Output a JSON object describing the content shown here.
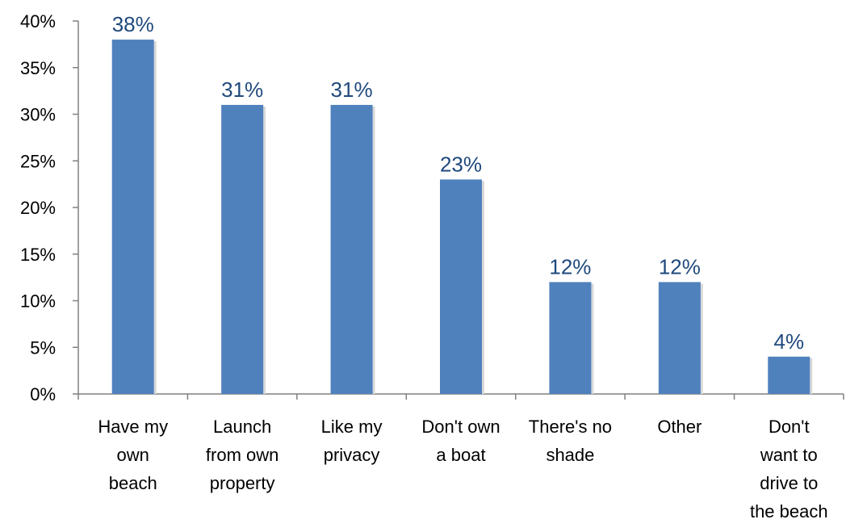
{
  "chart_data": {
    "type": "bar",
    "categories": [
      [
        "Have my",
        "own",
        "beach"
      ],
      [
        "Launch",
        "from own",
        "property"
      ],
      [
        "Like my",
        "privacy"
      ],
      [
        "Don't own",
        "a boat"
      ],
      [
        "There's no",
        "shade"
      ],
      [
        "Other"
      ],
      [
        "Don't",
        "want to",
        "drive to",
        "the beach"
      ]
    ],
    "values": [
      38,
      31,
      31,
      23,
      12,
      12,
      4
    ],
    "data_labels": [
      "38%",
      "31%",
      "31%",
      "23%",
      "12%",
      "12%",
      "4%"
    ],
    "title": "",
    "xlabel": "",
    "ylabel": "",
    "ylim": [
      0,
      40
    ],
    "yticks": [
      0,
      5,
      10,
      15,
      20,
      25,
      30,
      35,
      40
    ],
    "ytick_labels": [
      "0%",
      "5%",
      "10%",
      "15%",
      "20%",
      "25%",
      "30%",
      "35%",
      "40%"
    ],
    "grid": false,
    "legend": "none",
    "colors": {
      "bar": "#4f81bd",
      "data_label": "#1f497d",
      "axis": "#808080"
    }
  }
}
